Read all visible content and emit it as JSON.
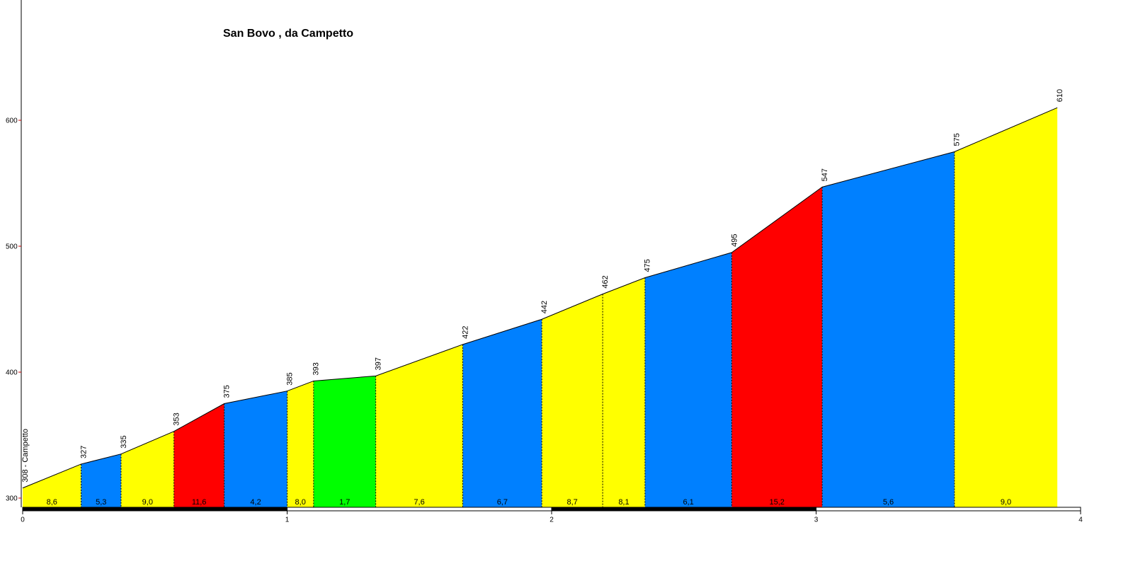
{
  "chart_data": {
    "type": "profile",
    "title": "San Bovo , da Campetto",
    "x": [
      0,
      0.221,
      0.372,
      0.572,
      0.762,
      1.0,
      1.1,
      1.335,
      1.664,
      1.963,
      2.193,
      2.353,
      2.681,
      3.023,
      3.523,
      3.912
    ],
    "values": [
      308,
      327,
      335,
      353,
      375,
      385,
      393,
      397,
      422,
      442,
      462,
      475,
      495,
      547,
      575,
      610
    ],
    "value_labels": [
      "308 - Campetto",
      "327",
      "335",
      "353",
      "375",
      "385",
      "393",
      "397",
      "422",
      "442",
      "462",
      "475",
      "495",
      "547",
      "575",
      "610"
    ],
    "segment_values": [
      8.6,
      5.3,
      9.0,
      11.6,
      4.2,
      8.0,
      1.7,
      7.6,
      6.7,
      8.7,
      8.1,
      6.1,
      15.2,
      5.6,
      9.0
    ],
    "segment_labels": [
      "8,6",
      "5,3",
      "9,0",
      "11,6",
      "4,2",
      "8,0",
      "1,7",
      "7,6",
      "6,7",
      "8,7",
      "8,1",
      "6,1",
      "15,2",
      "5,6",
      "9,0"
    ],
    "segment_colors": [
      "#ffff00",
      "#0080ff",
      "#ffff00",
      "#ff0000",
      "#0080ff",
      "#ffff00",
      "#00ff00",
      "#ffff00",
      "#0080ff",
      "#ffff00",
      "#ffff00",
      "#0080ff",
      "#ff0000",
      "#0080ff",
      "#ffff00"
    ],
    "xlim": [
      0,
      4
    ],
    "xticks": [
      0,
      1,
      2,
      3,
      4
    ],
    "ylim": [
      292.7,
      695.5
    ],
    "yticks": [
      300,
      400,
      500,
      600
    ]
  }
}
